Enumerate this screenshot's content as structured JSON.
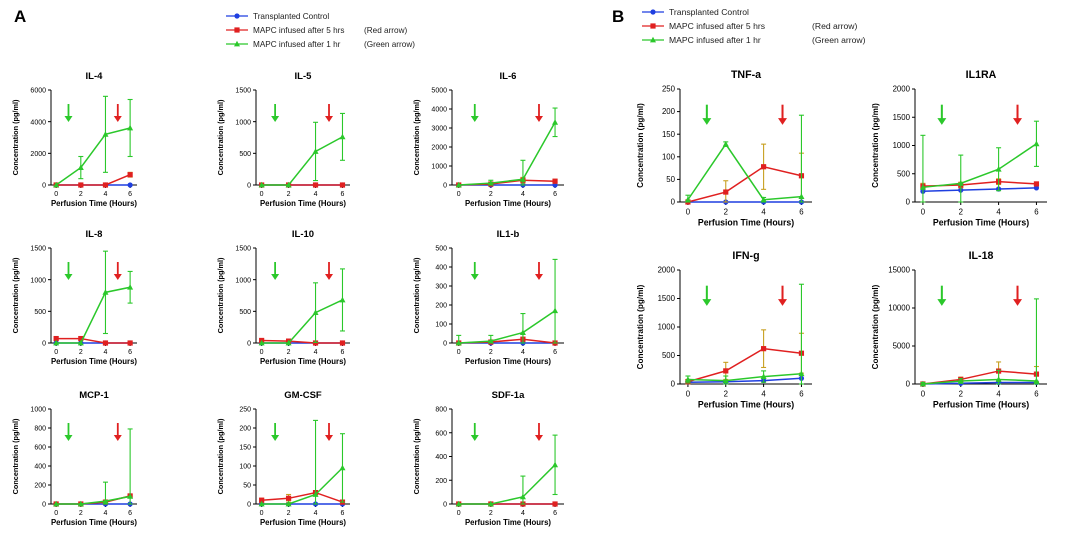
{
  "panels": [
    {
      "id": "A",
      "label": "A",
      "legend": [
        {
          "name": "Transplanted Control",
          "color": "#1f3fe0",
          "marker": "circle"
        },
        {
          "name": "MAPC infused after 5 hrs",
          "note": "(Red arrow)",
          "color": "#e02020",
          "marker": "square"
        },
        {
          "name": "MAPC infused after 1 hr",
          "note": "(Green arrow)",
          "color": "#2bc82b",
          "marker": "triangle"
        }
      ]
    },
    {
      "id": "B",
      "label": "B",
      "legend": [
        {
          "name": "Transplanted Control",
          "color": "#1f3fe0",
          "marker": "circle"
        },
        {
          "name": "MAPC infused after 5 hrs",
          "note": "(Red arrow)",
          "color": "#e02020",
          "marker": "square"
        },
        {
          "name": "MAPC infused after 1 hr",
          "note": "(Green arrow)",
          "color": "#2bc82b",
          "marker": "triangle"
        }
      ]
    }
  ],
  "chart_data": [
    {
      "type": "line",
      "title": "IL-4",
      "xlabel": "Perfusion Time (Hours)",
      "ylabel": "Concentration (pg/ml)",
      "x": [
        0,
        2,
        4,
        6
      ],
      "xticks": [
        "0",
        "2",
        "4",
        "6"
      ],
      "ylim": [
        0,
        6000
      ],
      "yticks": [
        0,
        2000,
        4000,
        6000
      ],
      "arrows": {
        "green": 1,
        "red": 5
      },
      "series": [
        {
          "name": "Transplanted Control",
          "values": [
            0,
            0,
            0,
            0
          ],
          "err": [
            0,
            0,
            0,
            0
          ]
        },
        {
          "name": "MAPC infused after 5 hrs",
          "values": [
            0,
            0,
            0,
            650
          ],
          "err": [
            0,
            0,
            0,
            150
          ]
        },
        {
          "name": "MAPC infused after 1 hr",
          "values": [
            0,
            1100,
            3200,
            3600
          ],
          "err": [
            0,
            700,
            2400,
            1800
          ]
        }
      ]
    },
    {
      "type": "line",
      "title": "IL-5",
      "xlabel": "Perfusion Time (Hours)",
      "ylabel": "Concentration (pg/ml)",
      "x": [
        0,
        2,
        4,
        6
      ],
      "xticks": [
        "0",
        "2",
        "4",
        "6"
      ],
      "ylim": [
        0,
        1500
      ],
      "yticks": [
        0,
        500,
        1000,
        1500
      ],
      "arrows": {
        "green": 1,
        "red": 5
      },
      "series": [
        {
          "name": "Transplanted Control",
          "values": [
            0,
            0,
            0,
            0
          ],
          "err": [
            0,
            0,
            0,
            0
          ]
        },
        {
          "name": "MAPC infused after 5 hrs",
          "values": [
            0,
            0,
            0,
            0
          ],
          "err": [
            0,
            0,
            0,
            0
          ]
        },
        {
          "name": "MAPC infused after 1 hr",
          "values": [
            0,
            0,
            530,
            760
          ],
          "err": [
            0,
            0,
            460,
            370
          ]
        }
      ]
    },
    {
      "type": "line",
      "title": "IL-6",
      "xlabel": "Perfusion Time (Hours)",
      "ylabel": "Concentration (pg/ml)",
      "x": [
        0,
        2,
        4,
        6
      ],
      "xticks": [
        "0",
        "2",
        "4",
        "6"
      ],
      "ylim": [
        0,
        5000
      ],
      "yticks": [
        0,
        1000,
        2000,
        3000,
        4000,
        5000
      ],
      "arrows": {
        "green": 1,
        "red": 5
      },
      "series": [
        {
          "name": "Transplanted Control",
          "values": [
            0,
            0,
            0,
            0
          ],
          "err": [
            0,
            0,
            0,
            0
          ]
        },
        {
          "name": "MAPC infused after 5 hrs",
          "values": [
            0,
            50,
            250,
            200
          ],
          "err": [
            0,
            50,
            150,
            100
          ]
        },
        {
          "name": "MAPC infused after 1 hr",
          "values": [
            0,
            100,
            300,
            3300
          ],
          "err": [
            0,
            150,
            1000,
            750
          ]
        }
      ]
    },
    {
      "type": "line",
      "title": "IL-8",
      "xlabel": "Perfusion Time (Hours)",
      "ylabel": "Concentration (pg/ml)",
      "x": [
        0,
        2,
        4,
        6
      ],
      "xticks": [
        "0",
        "2",
        "4",
        "6"
      ],
      "ylim": [
        0,
        1500
      ],
      "yticks": [
        0,
        500,
        1000,
        1500
      ],
      "arrows": {
        "green": 1,
        "red": 5
      },
      "series": [
        {
          "name": "Transplanted Control",
          "values": [
            0,
            0,
            0,
            0
          ],
          "err": [
            0,
            0,
            0,
            0
          ]
        },
        {
          "name": "MAPC infused after 5 hrs",
          "values": [
            70,
            70,
            0,
            0
          ],
          "err": [
            0,
            0,
            0,
            0
          ]
        },
        {
          "name": "MAPC infused after 1 hr",
          "values": [
            0,
            0,
            800,
            880
          ],
          "err": [
            0,
            0,
            650,
            250
          ]
        }
      ]
    },
    {
      "type": "line",
      "title": "IL-10",
      "xlabel": "Perfusion Time (Hours)",
      "ylabel": "Concentration (pg/ml)",
      "x": [
        0,
        2,
        4,
        6
      ],
      "xticks": [
        "0",
        "2",
        "4",
        "6"
      ],
      "ylim": [
        0,
        1500
      ],
      "yticks": [
        0,
        500,
        1000,
        1500
      ],
      "arrows": {
        "green": 1,
        "red": 5
      },
      "series": [
        {
          "name": "Transplanted Control",
          "values": [
            0,
            0,
            0,
            0
          ],
          "err": [
            0,
            0,
            0,
            0
          ]
        },
        {
          "name": "MAPC infused after 5 hrs",
          "values": [
            40,
            30,
            0,
            0
          ],
          "err": [
            0,
            0,
            0,
            0
          ]
        },
        {
          "name": "MAPC infused after 1 hr",
          "values": [
            0,
            0,
            480,
            680
          ],
          "err": [
            0,
            0,
            470,
            490
          ]
        }
      ]
    },
    {
      "type": "line",
      "title": "IL1-b",
      "xlabel": "Perfusion Time (Hours)",
      "ylabel": "Concentration (pg/ml)",
      "x": [
        0,
        2,
        4,
        6
      ],
      "xticks": [
        "0",
        "2",
        "4",
        "6"
      ],
      "ylim": [
        0,
        500
      ],
      "yticks": [
        0,
        100,
        200,
        300,
        400,
        500
      ],
      "arrows": {
        "green": 1,
        "red": 5
      },
      "series": [
        {
          "name": "Transplanted Control",
          "values": [
            0,
            0,
            0,
            0
          ],
          "err": [
            0,
            0,
            0,
            0
          ]
        },
        {
          "name": "MAPC infused after 5 hrs",
          "values": [
            0,
            5,
            20,
            0
          ],
          "err": [
            0,
            5,
            10,
            0
          ]
        },
        {
          "name": "MAPC infused after 1 hr",
          "values": [
            0,
            10,
            55,
            170
          ],
          "err": [
            40,
            30,
            100,
            270
          ]
        }
      ]
    },
    {
      "type": "line",
      "title": "MCP-1",
      "xlabel": "Perfusion Time (Hours)",
      "ylabel": "Concentration (pg/ml)",
      "x": [
        0,
        2,
        4,
        6
      ],
      "xticks": [
        "0",
        "2",
        "4",
        "6"
      ],
      "ylim": [
        0,
        1000
      ],
      "yticks": [
        0,
        200,
        400,
        600,
        800,
        1000
      ],
      "arrows": {
        "green": 1,
        "red": 5
      },
      "series": [
        {
          "name": "Transplanted Control",
          "values": [
            0,
            0,
            0,
            0
          ],
          "err": [
            0,
            0,
            0,
            0
          ]
        },
        {
          "name": "MAPC infused after 5 hrs",
          "values": [
            0,
            0,
            20,
            85
          ],
          "err": [
            0,
            0,
            10,
            10
          ]
        },
        {
          "name": "MAPC infused after 1 hr",
          "values": [
            0,
            0,
            30,
            80
          ],
          "err": [
            0,
            0,
            200,
            710
          ]
        }
      ]
    },
    {
      "type": "line",
      "title": "GM-CSF",
      "xlabel": "Perfusion Time (Hours)",
      "ylabel": "Concentration (pg/ml)",
      "x": [
        0,
        2,
        4,
        6
      ],
      "xticks": [
        "0",
        "2",
        "4",
        "6"
      ],
      "ylim": [
        0,
        250
      ],
      "yticks": [
        0,
        50,
        100,
        150,
        200,
        250
      ],
      "arrows": {
        "green": 1,
        "red": 5
      },
      "series": [
        {
          "name": "Transplanted Control",
          "values": [
            0,
            0,
            0,
            0
          ],
          "err": [
            0,
            0,
            0,
            0
          ]
        },
        {
          "name": "MAPC infused after 5 hrs",
          "values": [
            10,
            15,
            30,
            5
          ],
          "err": [
            5,
            10,
            5,
            5
          ]
        },
        {
          "name": "MAPC infused after 1 hr",
          "values": [
            0,
            0,
            25,
            95
          ],
          "err": [
            0,
            0,
            195,
            90
          ]
        }
      ]
    },
    {
      "type": "line",
      "title": "SDF-1a",
      "xlabel": "Perfusion Time (Hours)",
      "ylabel": "Concentration (pg/ml)",
      "x": [
        0,
        2,
        4,
        6
      ],
      "xticks": [
        "0",
        "2",
        "4",
        "6"
      ],
      "ylim": [
        0,
        800
      ],
      "yticks": [
        0,
        200,
        400,
        600,
        800
      ],
      "arrows": {
        "green": 1,
        "red": 5
      },
      "series": [
        {
          "name": "Transplanted Control",
          "values": [
            0,
            0,
            0,
            0
          ],
          "err": [
            0,
            0,
            0,
            0
          ]
        },
        {
          "name": "MAPC infused after 5 hrs",
          "values": [
            0,
            0,
            0,
            0
          ],
          "err": [
            0,
            0,
            0,
            0
          ]
        },
        {
          "name": "MAPC infused after 1 hr",
          "values": [
            0,
            0,
            60,
            330
          ],
          "err": [
            0,
            0,
            175,
            250
          ]
        }
      ]
    },
    {
      "type": "line",
      "title": "TNF-a",
      "xlabel": "Perfusion Time (Hours)",
      "ylabel": "Concentration (pg/ml)",
      "x": [
        0,
        2,
        4,
        6
      ],
      "xticks": [
        "0",
        "2",
        "4",
        "6"
      ],
      "ylim": [
        0,
        250
      ],
      "yticks": [
        0,
        50,
        100,
        150,
        200,
        250
      ],
      "arrows": {
        "green": 1,
        "red": 5
      },
      "series": [
        {
          "name": "Transplanted Control",
          "values": [
            0,
            0,
            0,
            0
          ],
          "err": [
            0,
            0,
            0,
            0
          ]
        },
        {
          "name": "MAPC infused after 5 hrs",
          "values": [
            0,
            22,
            78,
            58
          ],
          "err": [
            0,
            25,
            50,
            50
          ]
        },
        {
          "name": "MAPC infused after 1 hr",
          "values": [
            5,
            128,
            5,
            12
          ],
          "err": [
            10,
            5,
            5,
            180
          ]
        }
      ]
    },
    {
      "type": "line",
      "title": "IL1RA",
      "xlabel": "Perfusion Time (Hours)",
      "ylabel": "Concentration (pg/ml)",
      "x": [
        0,
        2,
        4,
        6
      ],
      "xticks": [
        "0",
        "2",
        "4",
        "6"
      ],
      "ylim": [
        0,
        2000
      ],
      "yticks": [
        0,
        500,
        1000,
        1500,
        2000
      ],
      "arrows": {
        "green": 1,
        "red": 5
      },
      "series": [
        {
          "name": "Transplanted Control",
          "values": [
            190,
            210,
            230,
            250
          ],
          "err": [
            0,
            0,
            0,
            0
          ]
        },
        {
          "name": "MAPC infused after 5 hrs",
          "values": [
            280,
            300,
            360,
            320
          ],
          "err": [
            50,
            50,
            50,
            30
          ]
        },
        {
          "name": "MAPC infused after 1 hr",
          "values": [
            260,
            330,
            580,
            1030
          ],
          "err": [
            920,
            500,
            380,
            400
          ]
        }
      ]
    },
    {
      "type": "line",
      "title": "IFN-g",
      "xlabel": "Perfusion Time (Hours)",
      "ylabel": "Concentration (pg/ml)",
      "x": [
        0,
        2,
        4,
        6
      ],
      "xticks": [
        "0",
        "2",
        "4",
        "6"
      ],
      "ylim": [
        0,
        2000
      ],
      "yticks": [
        0,
        500,
        1000,
        1500,
        2000
      ],
      "arrows": {
        "green": 1,
        "red": 5
      },
      "series": [
        {
          "name": "Transplanted Control",
          "values": [
            30,
            40,
            60,
            100
          ],
          "err": [
            0,
            0,
            0,
            0
          ]
        },
        {
          "name": "MAPC infused after 5 hrs",
          "values": [
            40,
            230,
            620,
            540
          ],
          "err": [
            40,
            150,
            330,
            350
          ]
        },
        {
          "name": "MAPC infused after 1 hr",
          "values": [
            80,
            60,
            130,
            180
          ],
          "err": [
            60,
            80,
            100,
            1570
          ]
        }
      ]
    },
    {
      "type": "line",
      "title": "IL-18",
      "xlabel": "Perfusion Time (Hours)",
      "ylabel": "Concentration (pg/ml)",
      "x": [
        0,
        2,
        4,
        6
      ],
      "xticks": [
        "0",
        "2",
        "4",
        "6"
      ],
      "ylim": [
        0,
        15000
      ],
      "yticks": [
        0,
        5000,
        10000,
        15000
      ],
      "arrows": {
        "green": 1,
        "red": 5
      },
      "series": [
        {
          "name": "Transplanted Control",
          "values": [
            0,
            100,
            200,
            200
          ],
          "err": [
            0,
            0,
            0,
            0
          ]
        },
        {
          "name": "MAPC infused after 5 hrs",
          "values": [
            0,
            600,
            1700,
            1300
          ],
          "err": [
            0,
            300,
            1200,
            1000
          ]
        },
        {
          "name": "MAPC infused after 1 hr",
          "values": [
            0,
            400,
            600,
            400
          ],
          "err": [
            200,
            300,
            1200,
            10800
          ]
        }
      ]
    }
  ]
}
